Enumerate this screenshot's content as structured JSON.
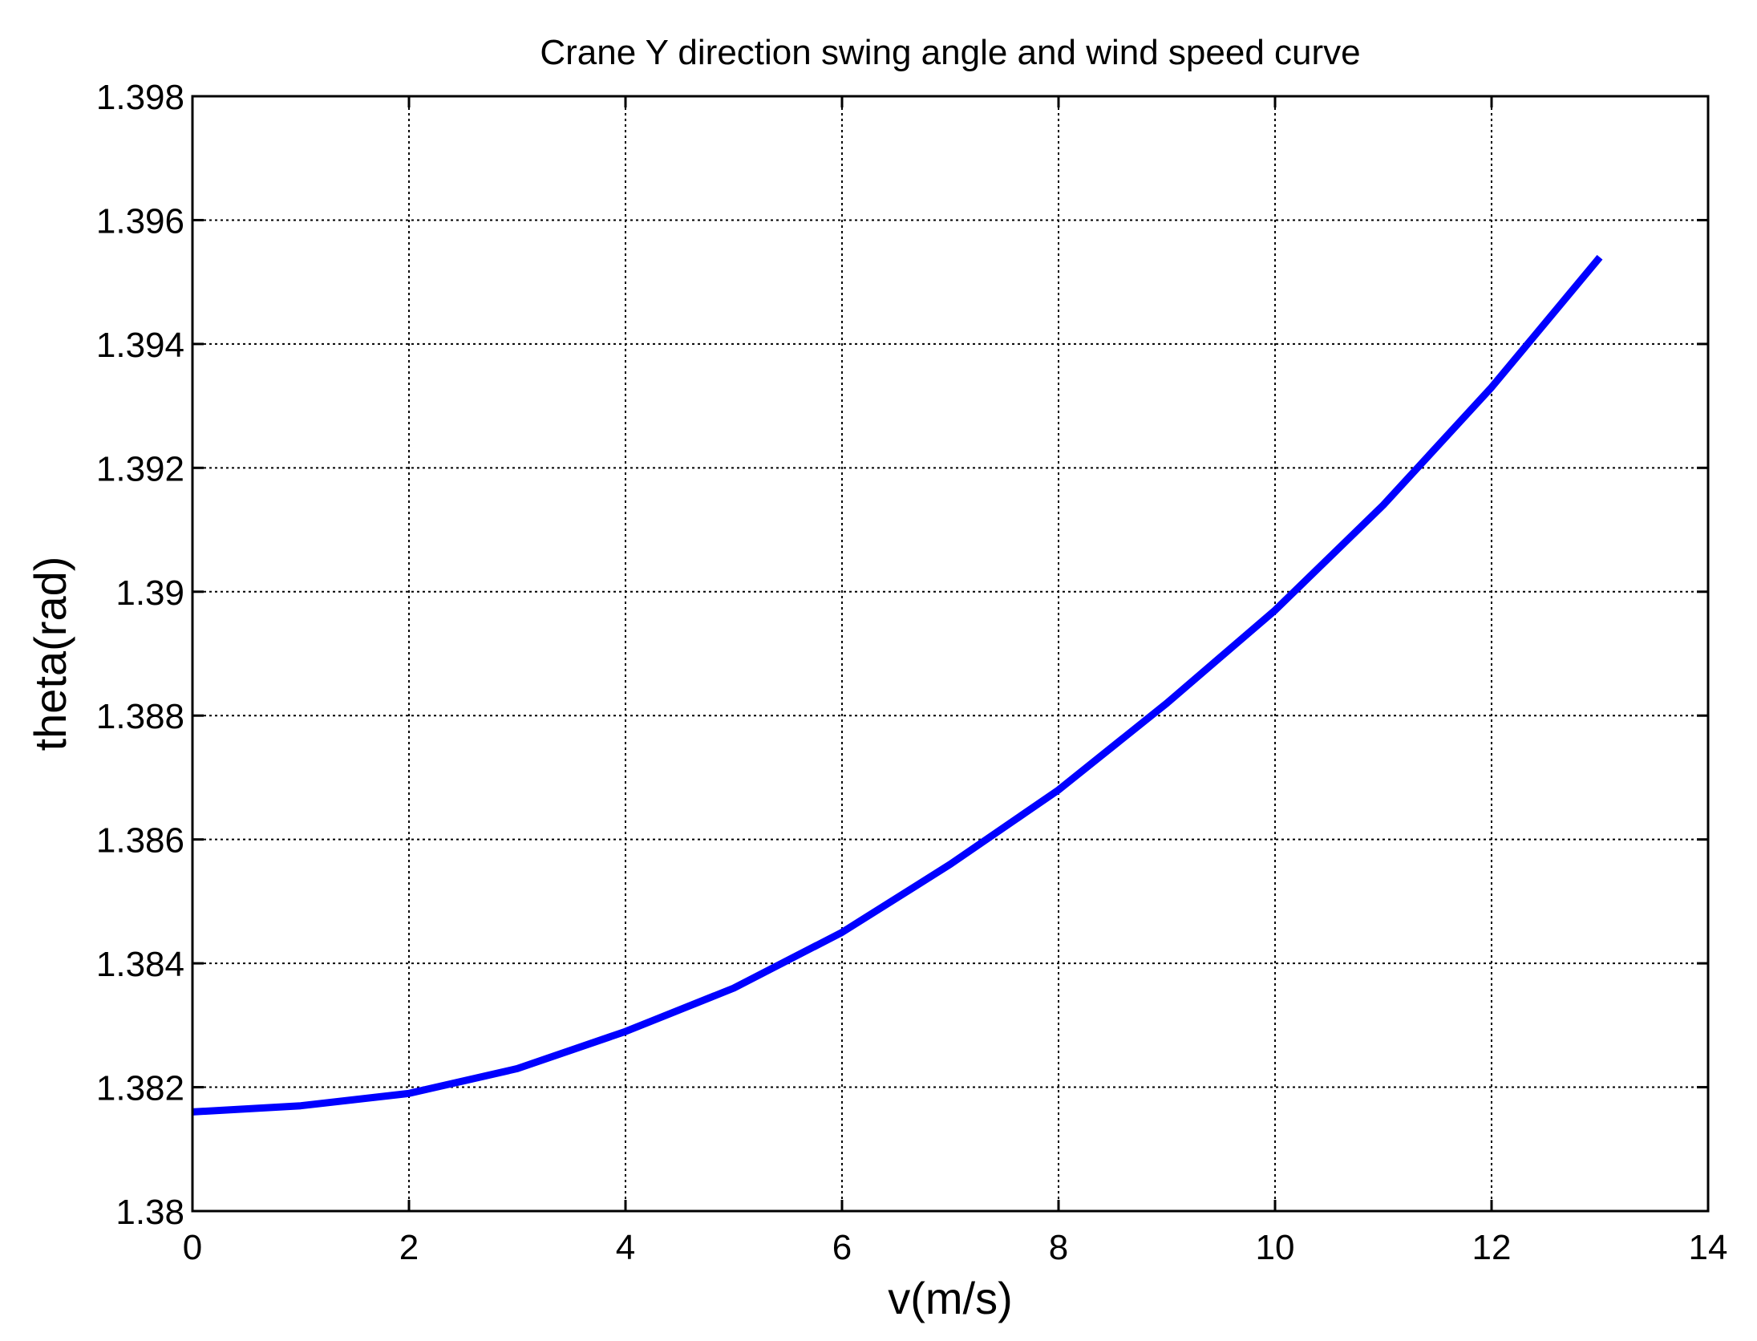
{
  "chart_data": {
    "type": "line",
    "title": "Crane Y direction swing angle and wind speed curve",
    "xlabel": "v(m/s)",
    "ylabel": "theta(rad)",
    "xlim": [
      0,
      14
    ],
    "ylim": [
      1.38,
      1.398
    ],
    "xticks": [
      0,
      2,
      4,
      6,
      8,
      10,
      12,
      14
    ],
    "xtick_labels": [
      "0",
      "2",
      "4",
      "6",
      "8",
      "10",
      "12",
      "14"
    ],
    "yticks": [
      1.38,
      1.382,
      1.384,
      1.386,
      1.388,
      1.39,
      1.392,
      1.394,
      1.396,
      1.398
    ],
    "ytick_labels": [
      "1.38",
      "1.382",
      "1.384",
      "1.386",
      "1.388",
      "1.39",
      "1.392",
      "1.394",
      "1.396",
      "1.398"
    ],
    "grid": true,
    "grid_style": "dotted",
    "series": [
      {
        "color": "#0000ff",
        "x": [
          0,
          1,
          2,
          3,
          4,
          5,
          6,
          7,
          8,
          9,
          10,
          11,
          12,
          13
        ],
        "y": [
          1.3816,
          1.3817,
          1.3819,
          1.3823,
          1.3829,
          1.3836,
          1.3845,
          1.3856,
          1.3868,
          1.3882,
          1.3897,
          1.3914,
          1.3933,
          1.3954
        ]
      }
    ]
  }
}
